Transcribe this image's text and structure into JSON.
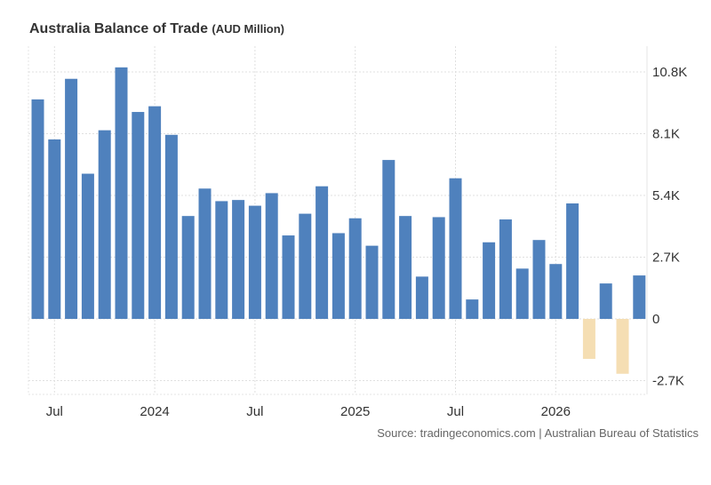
{
  "chart_data": {
    "type": "bar",
    "title": "Australia Balance of Trade",
    "unit": "(AUD Million)",
    "source": "Source: tradingeconomics.com | Australian Bureau of Statistics",
    "x_tick_labels": [
      "Jul",
      "2024",
      "Jul",
      "2025",
      "Jul",
      "2026"
    ],
    "y_tick_labels": [
      "10.8K",
      "8.1K",
      "5.4K",
      "2.7K",
      "0",
      "-2.7K"
    ],
    "y_ticks": [
      10800,
      8100,
      5400,
      2700,
      0,
      -2700
    ],
    "ylim": [
      -3400,
      12000
    ],
    "grid": true,
    "categories": [
      "2023-06",
      "2023-07",
      "2023-08",
      "2023-09",
      "2023-10",
      "2023-11",
      "2023-12",
      "2024-01",
      "2024-02",
      "2024-03",
      "2024-04",
      "2024-05",
      "2024-06",
      "2024-07",
      "2024-08",
      "2024-09",
      "2024-10",
      "2024-11",
      "2024-12",
      "2025-01",
      "2025-02",
      "2025-03",
      "2025-04",
      "2025-05",
      "2025-06",
      "2025-07",
      "2025-08",
      "2025-09",
      "2025-10",
      "2025-11",
      "2025-12",
      "2026-01",
      "2026-02",
      "2026-03",
      "2026-04",
      "2026-05",
      "2026-06"
    ],
    "values": [
      9600,
      7850,
      10500,
      6350,
      8250,
      11000,
      9050,
      9300,
      8050,
      4500,
      5700,
      5150,
      5200,
      4950,
      5500,
      3650,
      4600,
      5800,
      3750,
      4400,
      3200,
      6950,
      4500,
      1850,
      4450,
      6150,
      850,
      3350,
      4350,
      2200,
      3450,
      2400,
      5050,
      -1750,
      1550,
      -2400,
      1900
    ],
    "positive_color": "#4f81bd",
    "negative_color": "#f5deb3"
  }
}
